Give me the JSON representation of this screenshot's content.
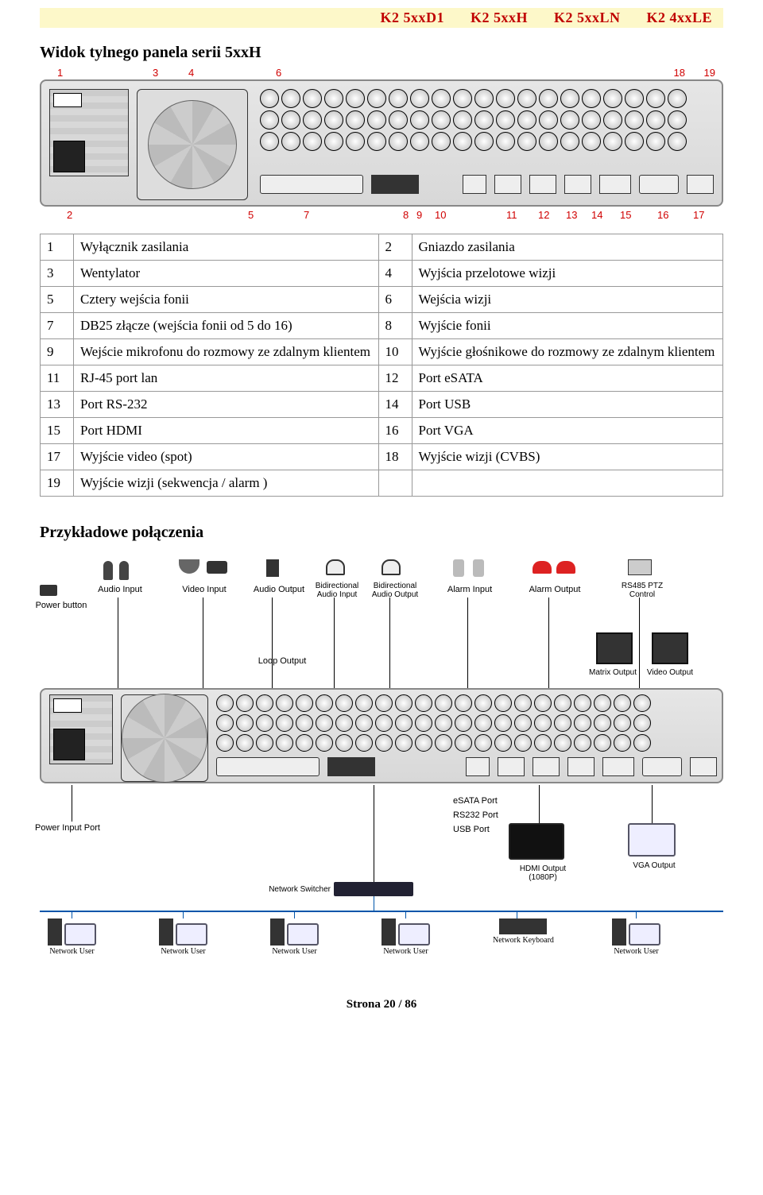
{
  "header_models": [
    "K2 5xxD1",
    "K2 5xxH",
    "K2 5xxLN",
    "K2 4xxLE"
  ],
  "header": {
    "bg": "#fdf8c9",
    "text_color": "#c00000",
    "fontsize": 18
  },
  "section1_title": "Widok tylnego panela serii 5xxH",
  "callouts_top": [
    "1",
    "3",
    "4",
    "6",
    "18",
    "19"
  ],
  "callouts_bottom": [
    "2",
    "5",
    "7",
    "8",
    "9",
    "10",
    "11",
    "12",
    "13",
    "14",
    "15",
    "16",
    "17"
  ],
  "callout_color": "#d00000",
  "table": {
    "border_color": "#999999",
    "fontsize": 17,
    "rows": [
      {
        "n1": "1",
        "t1": "Wyłącznik zasilania",
        "n2": "2",
        "t2": "Gniazdo zasilania"
      },
      {
        "n1": "3",
        "t1": "Wentylator",
        "n2": "4",
        "t2": "Wyjścia przelotowe wizji"
      },
      {
        "n1": "5",
        "t1": "Cztery wejścia fonii",
        "n2": "6",
        "t2": "Wejścia wizji"
      },
      {
        "n1": "7",
        "t1": "DB25 złącze (wejścia fonii od 5 do 16)",
        "n2": "8",
        "t2": "Wyjście fonii"
      },
      {
        "n1": "9",
        "t1": "Wejście mikrofonu do rozmowy ze zdalnym klientem",
        "n2": "10",
        "t2": "Wyjście głośnikowe do rozmowy ze zdalnym klientem"
      },
      {
        "n1": "11",
        "t1": "RJ-45 port lan",
        "n2": "12",
        "t2": "Port eSATA"
      },
      {
        "n1": "13",
        "t1": "Port RS-232",
        "n2": "14",
        "t2": "Port USB"
      },
      {
        "n1": "15",
        "t1": "Port HDMI",
        "n2": "16",
        "t2": "Port VGA"
      },
      {
        "n1": "17",
        "t1": "Wyjście video (spot)",
        "n2": "18",
        "t2": "Wyjście wizji (CVBS)"
      },
      {
        "n1": "19",
        "t1": "Wyjście wizji (sekwencja / alarm )",
        "n2": "",
        "t2": ""
      }
    ]
  },
  "section2_title": "Przykładowe połączenia",
  "conn_labels": {
    "power_button": "Power button",
    "audio_input": "Audio Input",
    "video_input": "Video Input",
    "audio_output": "Audio Output",
    "bi_audio_in": "Bidirectional Audio Input",
    "bi_audio_out": "Bidirectional Audio Output",
    "alarm_input": "Alarm Input",
    "alarm_output": "Alarm Output",
    "rs485": "RS485 PTZ Control",
    "loop_output": "Loop Output",
    "matrix_output": "Matrix Output",
    "video_output": "Video Output",
    "esata_port": "eSATA Port",
    "rs232_port": "RS232 Port",
    "usb_port": "USB Port",
    "hdmi_output": "HDMI Output (1080P)",
    "vga_output": "VGA Output",
    "power_input": "Power Input Port",
    "network_switcher": "Network Switcher",
    "network_user": "Network User",
    "network_keyboard": "Network Keyboard"
  },
  "footer": "Strona 20 / 86",
  "colors": {
    "page_bg": "#ffffff",
    "panel_bg_top": "#e6e6e6",
    "panel_bg_bottom": "#d8d8d8",
    "panel_border": "#888888",
    "text": "#000000",
    "net_wire": "#0055aa"
  }
}
